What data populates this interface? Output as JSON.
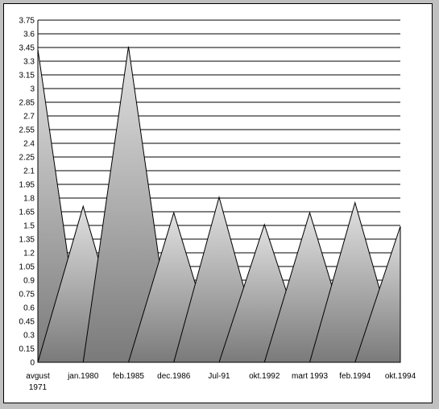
{
  "chart_data": {
    "type": "area",
    "style": "pyramid / triangle markers with gray gradient fill",
    "title": "",
    "xlabel": "",
    "ylabel": "",
    "categories": [
      [
        "avgust",
        "1971"
      ],
      [
        "jan.1980"
      ],
      [
        "feb.1985"
      ],
      [
        "dec.1986"
      ],
      [
        "Jul-91"
      ],
      [
        "okt.1992"
      ],
      [
        "mart 1993"
      ],
      [
        "feb.1994"
      ],
      [
        "okt.1994"
      ]
    ],
    "values": [
      3.43,
      1.71,
      3.46,
      1.64,
      1.81,
      1.51,
      1.64,
      1.75,
      1.49
    ],
    "ylim": [
      0,
      3.75
    ],
    "ystep": 0.15,
    "yticks": [
      "0",
      "0.15",
      "0.3",
      "0.45",
      "0.6",
      "0.75",
      "0.9",
      "1.05",
      "1.2",
      "1.35",
      "1.5",
      "1.65",
      "1.8",
      "1.95",
      "2.1",
      "2.25",
      "2.4",
      "2.55",
      "2.7",
      "2.85",
      "3",
      "3.15",
      "3.3",
      "3.45",
      "3.6",
      "3.75"
    ],
    "grid": true,
    "legend": "none",
    "colors": {
      "fill_light": "#e2e2e2",
      "fill_dark": "#7a7a7a",
      "grid": "#000000",
      "background": "#ffffff",
      "outer": "#c0c0c0"
    }
  }
}
